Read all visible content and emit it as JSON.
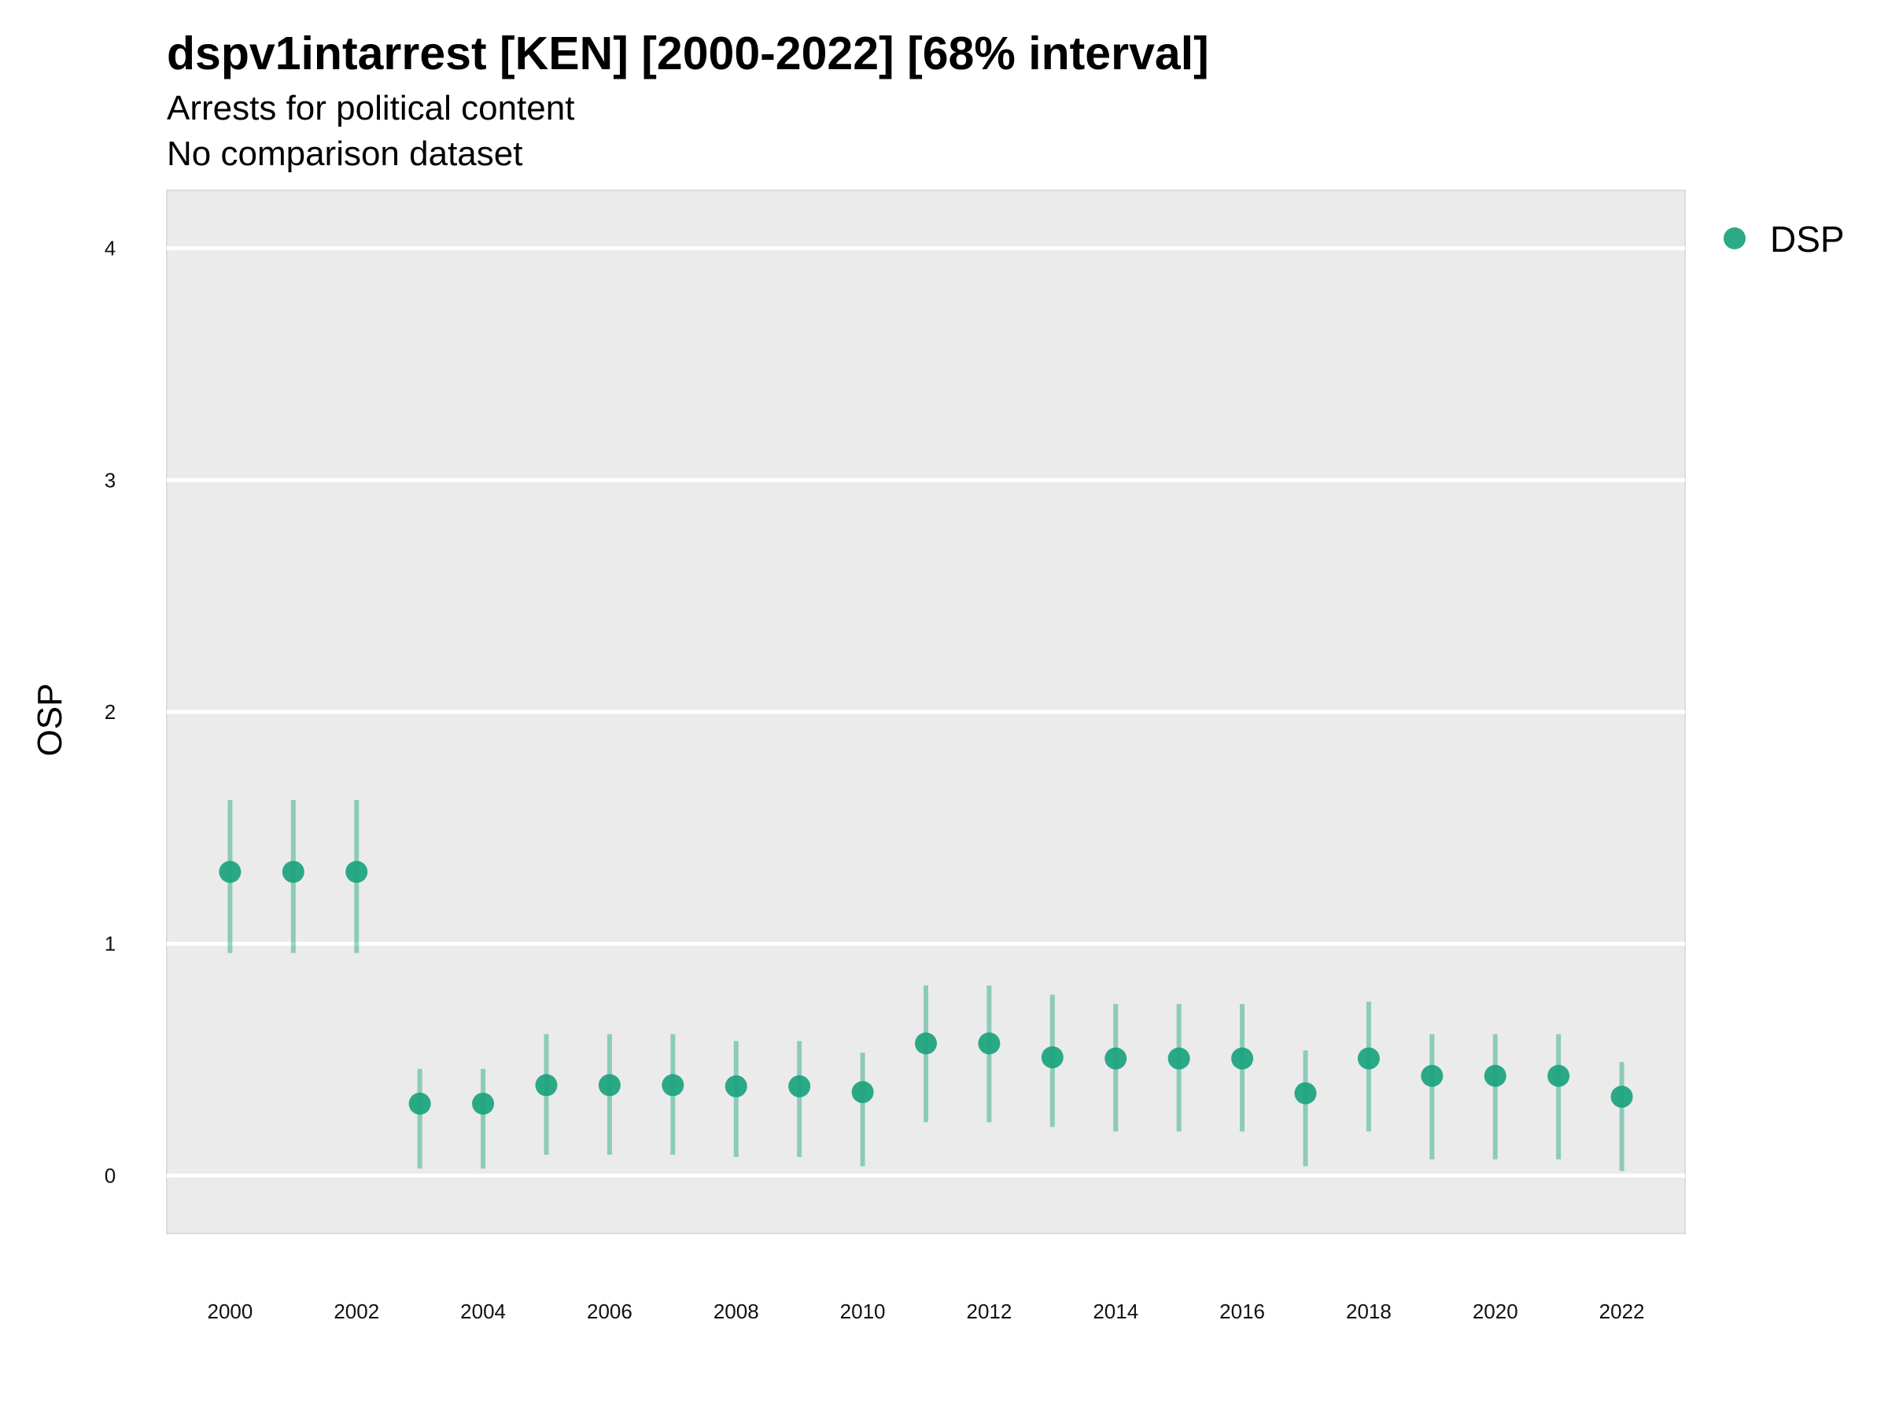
{
  "title": "dspv1intarrest [KEN] [2000-2022] [68% interval]",
  "subtitle": "Arrests for political content",
  "subtitle2": "No comparison dataset",
  "chart_data": {
    "type": "scatter",
    "ylabel": "OSP",
    "xlabel": "",
    "ylim": [
      -0.25,
      4.25
    ],
    "yticks": [
      0,
      1,
      2,
      3,
      4
    ],
    "xlim": [
      1999,
      2023
    ],
    "xticks": [
      2000,
      2002,
      2004,
      2006,
      2008,
      2010,
      2012,
      2014,
      2016,
      2018,
      2020,
      2022
    ],
    "grid": true,
    "legend_position": "top-right",
    "colors": {
      "DSP": "#1aa37d",
      "panel": "#ebebeb",
      "grid": "#ffffff"
    },
    "series": [
      {
        "name": "DSP",
        "x": [
          2000,
          2001,
          2002,
          2003,
          2004,
          2005,
          2006,
          2007,
          2008,
          2009,
          2010,
          2011,
          2012,
          2013,
          2014,
          2015,
          2016,
          2017,
          2018,
          2019,
          2020,
          2021,
          2022
        ],
        "y": [
          1.31,
          1.31,
          1.31,
          0.31,
          0.31,
          0.39,
          0.39,
          0.39,
          0.385,
          0.385,
          0.36,
          0.57,
          0.57,
          0.51,
          0.505,
          0.505,
          0.505,
          0.355,
          0.505,
          0.43,
          0.43,
          0.43,
          0.34
        ],
        "lower": [
          0.96,
          0.96,
          0.96,
          0.03,
          0.03,
          0.09,
          0.09,
          0.09,
          0.08,
          0.08,
          0.04,
          0.23,
          0.23,
          0.21,
          0.19,
          0.19,
          0.19,
          0.04,
          0.19,
          0.07,
          0.07,
          0.07,
          0.02
        ],
        "upper": [
          1.62,
          1.62,
          1.62,
          0.46,
          0.46,
          0.61,
          0.61,
          0.61,
          0.58,
          0.58,
          0.53,
          0.82,
          0.82,
          0.78,
          0.74,
          0.74,
          0.74,
          0.54,
          0.75,
          0.61,
          0.61,
          0.61,
          0.49
        ]
      }
    ]
  }
}
